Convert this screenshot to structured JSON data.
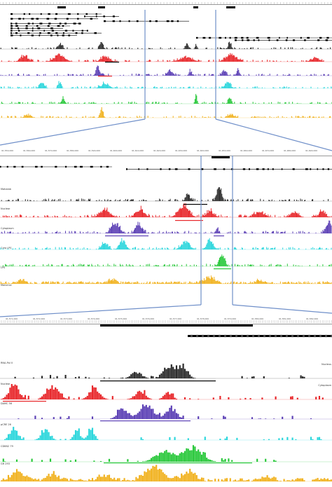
{
  "colors": {
    "track1": "#2b2b2b",
    "track2": "#e8262a",
    "track3": "#5b3fb5",
    "track4": "#2ad6dc",
    "track5": "#28c83a",
    "track6": "#f1b21f",
    "zoom": "#6f8fc9"
  },
  "panels": [
    {
      "name": "overview",
      "ruler_labels": [],
      "left_labels": [
        "",
        "",
        "",
        "",
        "",
        ""
      ],
      "right_labels": [
        "",
        "",
        "",
        "",
        "",
        ""
      ]
    },
    {
      "name": "zoom-1",
      "ruler_labels": [
        "91,550,000",
        "91,560,000",
        "91,570,000",
        "91,580,000",
        "91,590,000",
        "91,600,000",
        "91,610,000",
        "91,620,000",
        "91,630,000",
        "91,640,000",
        "91,650,000",
        "91,660,000",
        "91,670,000",
        "91,680,000",
        "91,690,000"
      ],
      "left_labels": [
        "Mahalab",
        "Nuclear",
        "Cytoplasm",
        "Cyto LPS",
        "LPS",
        "Mononuc"
      ],
      "right_labels": [
        "",
        "",
        "",
        "",
        "",
        ""
      ]
    },
    {
      "name": "zoom-2",
      "ruler_labels": [
        "91,571,000",
        "91,572,000",
        "91,573,000",
        "91,574,000",
        "91,575,000",
        "91,576,000",
        "91,577,000",
        "91,578,000",
        "91,579,000",
        "91,580,000",
        "91,581,000",
        "91,582,000"
      ],
      "left_labels": [
        "RNA-Pol II",
        "Nuclear",
        "DAMC 56",
        "pCRE 26",
        "CDKN2 79",
        "GR 293"
      ],
      "right_labels": [
        "Nucleus",
        "Cytoplasm",
        "",
        "",
        "",
        ""
      ]
    }
  ]
}
